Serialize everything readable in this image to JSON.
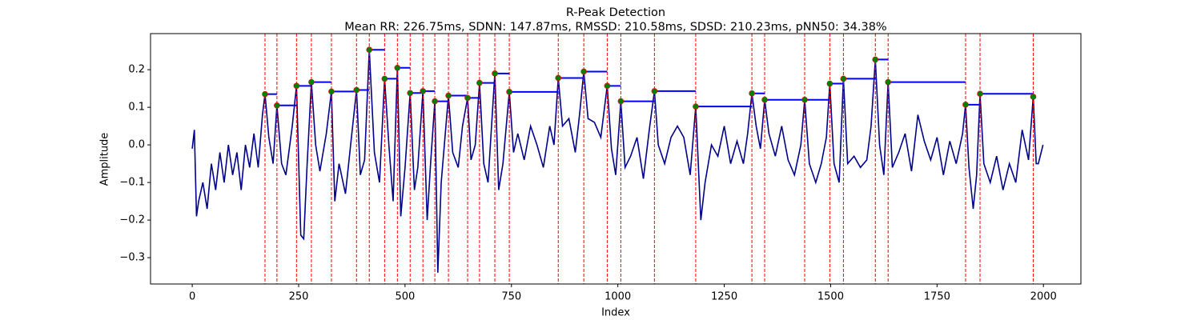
{
  "chart_data": {
    "type": "line",
    "title": "R-Peak Detection",
    "subtitle": "Mean RR: 226.75ms, SDNN: 147.87ms, RMSSD: 210.58ms, SDSD: 210.23ms, pNN50: 34.38%",
    "x_label": "Index",
    "y_label": "Amplitude",
    "x": [
      0,
      5,
      10,
      15,
      25,
      35,
      45,
      55,
      65,
      75,
      85,
      95,
      105,
      115,
      125,
      135,
      145,
      155,
      165,
      171,
      180,
      190,
      199,
      210,
      220,
      235,
      245,
      255,
      262,
      270,
      280,
      290,
      300,
      315,
      327,
      335,
      345,
      360,
      375,
      386,
      395,
      405,
      416,
      428,
      440,
      452,
      462,
      472,
      482,
      490,
      500,
      512,
      522,
      530,
      542,
      552,
      560,
      570,
      577,
      585,
      602,
      612,
      625,
      635,
      647,
      655,
      665,
      675,
      685,
      695,
      711,
      720,
      730,
      745,
      755,
      765,
      780,
      795,
      810,
      825,
      840,
      850,
      860,
      870,
      885,
      900,
      910,
      920,
      930,
      945,
      960,
      975,
      985,
      995,
      1007,
      1017,
      1030,
      1045,
      1060,
      1075,
      1086,
      1095,
      1110,
      1125,
      1140,
      1155,
      1170,
      1183,
      1195,
      1205,
      1220,
      1235,
      1250,
      1265,
      1280,
      1295,
      1305,
      1315,
      1325,
      1335,
      1345,
      1355,
      1370,
      1385,
      1400,
      1415,
      1430,
      1439,
      1450,
      1465,
      1478,
      1490,
      1498,
      1508,
      1520,
      1530,
      1540,
      1555,
      1570,
      1585,
      1595,
      1605,
      1615,
      1625,
      1635,
      1645,
      1660,
      1675,
      1690,
      1705,
      1720,
      1735,
      1750,
      1765,
      1780,
      1795,
      1810,
      1817,
      1825,
      1835,
      1843,
      1851,
      1860,
      1875,
      1890,
      1905,
      1920,
      1935,
      1950,
      1965,
      1976,
      1983,
      1988,
      1999
    ],
    "series": [
      {
        "color": "#00008b",
        "values": [
          -0.01,
          0.04,
          -0.19,
          -0.15,
          -0.1,
          -0.17,
          -0.05,
          -0.12,
          -0.02,
          -0.1,
          0.0,
          -0.08,
          -0.02,
          -0.12,
          0.0,
          -0.06,
          0.03,
          -0.06,
          0.08,
          0.135,
          0.02,
          -0.05,
          0.105,
          -0.05,
          -0.08,
          0.05,
          0.157,
          -0.24,
          -0.25,
          -0.05,
          0.167,
          0.0,
          -0.07,
          0.03,
          0.142,
          -0.15,
          -0.05,
          -0.13,
          0.03,
          0.146,
          -0.08,
          -0.04,
          0.253,
          -0.02,
          -0.1,
          0.176,
          0.0,
          -0.15,
          0.205,
          -0.19,
          -0.06,
          0.138,
          -0.12,
          -0.06,
          0.143,
          -0.2,
          -0.05,
          0.116,
          -0.34,
          -0.1,
          0.131,
          -0.02,
          -0.06,
          0.05,
          0.125,
          -0.04,
          0.0,
          0.165,
          -0.05,
          -0.1,
          0.19,
          -0.12,
          -0.05,
          0.141,
          -0.02,
          0.03,
          -0.04,
          0.05,
          0.0,
          -0.06,
          0.05,
          0.0,
          0.178,
          0.05,
          0.07,
          -0.02,
          0.08,
          0.195,
          0.07,
          0.06,
          0.02,
          0.157,
          -0.01,
          -0.08,
          0.116,
          -0.06,
          -0.03,
          0.02,
          -0.09,
          0.05,
          0.143,
          0.0,
          -0.05,
          0.02,
          0.05,
          0.02,
          -0.08,
          0.102,
          -0.2,
          -0.1,
          0.0,
          -0.03,
          0.05,
          -0.05,
          0.01,
          -0.05,
          0.03,
          0.137,
          0.05,
          -0.01,
          0.12,
          0.03,
          -0.03,
          0.05,
          -0.04,
          -0.08,
          0.0,
          0.12,
          -0.05,
          -0.1,
          -0.05,
          0.02,
          0.163,
          -0.05,
          -0.1,
          0.176,
          -0.05,
          -0.03,
          -0.06,
          -0.04,
          0.05,
          0.227,
          0.0,
          -0.08,
          0.167,
          -0.06,
          -0.02,
          0.03,
          -0.07,
          0.08,
          0.01,
          -0.04,
          0.02,
          -0.08,
          0.01,
          -0.05,
          0.03,
          0.107,
          -0.06,
          -0.17,
          -0.08,
          0.136,
          -0.05,
          -0.1,
          -0.03,
          -0.12,
          -0.05,
          -0.1,
          0.04,
          -0.04,
          0.128,
          -0.05,
          -0.05,
          0.0
        ]
      }
    ],
    "peaks": {
      "color": "#008000",
      "edge_color": "#ff0000",
      "vline_color": "#ff0000",
      "hline_color": "#0000ff",
      "x": [
        171,
        199,
        245,
        280,
        327,
        386,
        416,
        452,
        482,
        512,
        542,
        570,
        602,
        647,
        675,
        711,
        745,
        860,
        920,
        975,
        1007,
        1086,
        1183,
        1315,
        1345,
        1439,
        1498,
        1530,
        1605,
        1635,
        1817,
        1851,
        1976
      ],
      "values": [
        0.135,
        0.105,
        0.157,
        0.167,
        0.142,
        0.146,
        0.253,
        0.176,
        0.205,
        0.138,
        0.143,
        0.116,
        0.131,
        0.125,
        0.165,
        0.19,
        0.141,
        0.178,
        0.195,
        0.157,
        0.116,
        0.143,
        0.102,
        0.137,
        0.12,
        0.12,
        0.163,
        0.176,
        0.227,
        0.167,
        0.107,
        0.136,
        0.128
      ]
    },
    "xlim": [
      -98,
      2088
    ],
    "xticks": [
      0,
      250,
      500,
      750,
      1000,
      1250,
      1500,
      1750,
      2000
    ],
    "ylim": [
      -0.37,
      0.296
    ],
    "yticks": [
      {
        "value": -0.3,
        "label": "−0.3"
      },
      {
        "value": -0.2,
        "label": "−0.2"
      },
      {
        "value": -0.1,
        "label": "−0.1"
      },
      {
        "value": 0,
        "label": "0.0"
      },
      0.1,
      0.2
    ],
    "grid": false
  }
}
